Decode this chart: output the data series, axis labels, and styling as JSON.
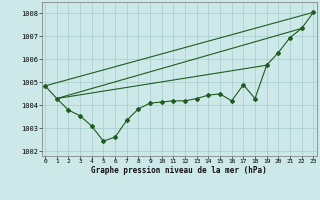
{
  "title": "Graphe pression niveau de la mer (hPa)",
  "bg_color": "#cce8e8",
  "line_color": "#1f5c1f",
  "grid_color": "#a8cccc",
  "ylim": [
    1001.8,
    1008.5
  ],
  "xlim": [
    -0.3,
    23.3
  ],
  "yticks": [
    1002,
    1003,
    1004,
    1005,
    1006,
    1007,
    1008
  ],
  "xtick_labels": [
    "0",
    "1",
    "2",
    "3",
    "4",
    "5",
    "6",
    "7",
    "8",
    "9",
    "10",
    "11",
    "12",
    "13",
    "14",
    "15",
    "16",
    "17",
    "18",
    "19",
    "20",
    "21",
    "22",
    "23"
  ],
  "pressure": [
    1004.85,
    1004.3,
    1003.8,
    1003.55,
    1003.1,
    1002.45,
    1002.62,
    1003.35,
    1003.85,
    1004.1,
    1004.15,
    1004.2,
    1004.2,
    1004.3,
    1004.45,
    1004.5,
    1004.2,
    1004.9,
    1004.3,
    1005.75,
    1006.3,
    1006.95,
    1007.35,
    1008.05
  ],
  "trend_lines": [
    {
      "x": [
        0,
        23
      ],
      "y": [
        1004.85,
        1008.05
      ]
    },
    {
      "x": [
        1,
        22
      ],
      "y": [
        1004.3,
        1007.35
      ]
    },
    {
      "x": [
        1,
        19
      ],
      "y": [
        1004.3,
        1005.75
      ]
    }
  ],
  "ylabel_fontsize": 5.0,
  "xlabel_fontsize": 5.5,
  "tick_labelsize": 4.5,
  "linewidth": 0.8,
  "markersize": 2.0
}
